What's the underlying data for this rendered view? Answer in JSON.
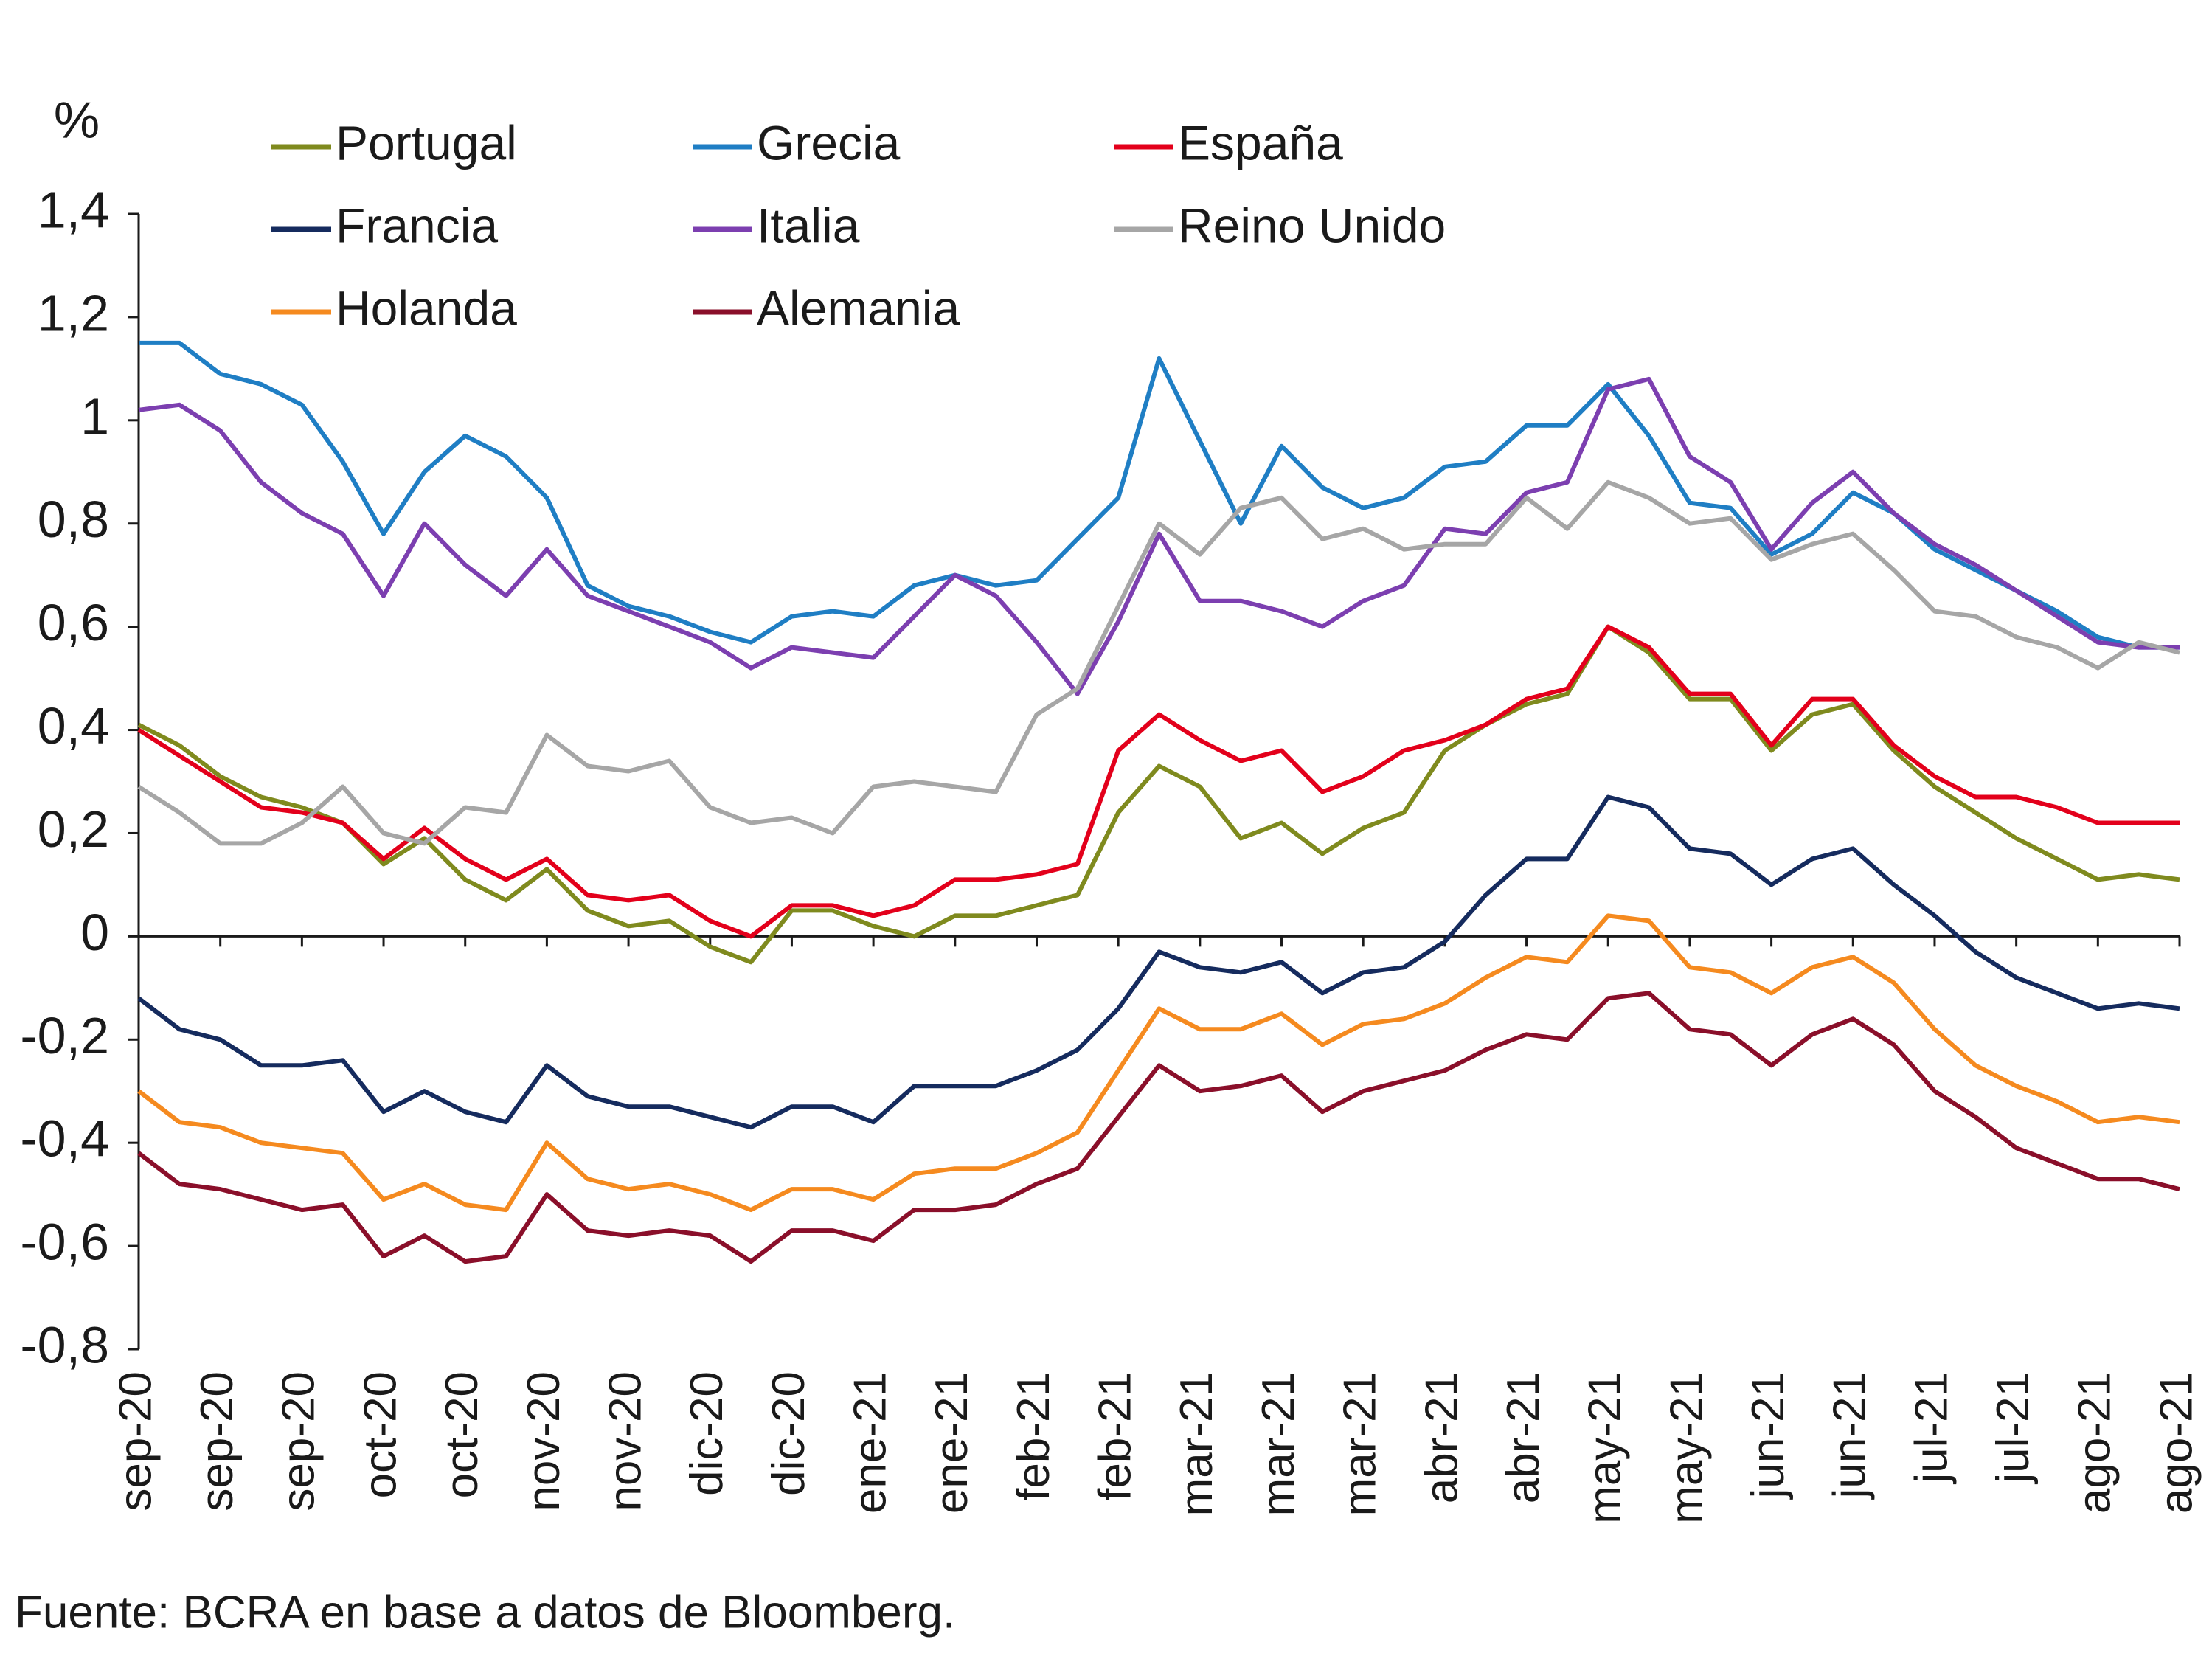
{
  "chart_data": {
    "type": "line",
    "ylabel": "%",
    "source": "Fuente: BCRA en base a datos de Bloomberg.",
    "legend": "top-left",
    "categories": [
      "sep-20",
      null,
      "sep-20",
      null,
      "sep-20",
      null,
      "oct-20",
      null,
      "oct-20",
      null,
      "nov-20",
      null,
      "nov-20",
      null,
      "dic-20",
      null,
      "dic-20",
      null,
      "ene-21",
      null,
      "ene-21",
      null,
      "feb-21",
      null,
      "feb-21",
      null,
      "mar-21",
      null,
      "mar-21",
      null,
      "mar-21",
      null,
      "abr-21",
      null,
      "abr-21",
      null,
      "may-21",
      null,
      "may-21",
      null,
      "jun-21",
      null,
      "jun-21",
      null,
      "jul-21",
      null,
      "jul-21",
      null,
      "ago-21",
      null,
      "ago-21"
    ],
    "ylim": [
      -0.8,
      1.4
    ],
    "yticks": [
      {
        "value": -0.8,
        "label": "-0,8"
      },
      {
        "value": -0.6,
        "label": "-0,6"
      },
      {
        "value": -0.4,
        "label": "-0,4"
      },
      {
        "value": -0.2,
        "label": "-0,2"
      },
      0,
      {
        "value": 0.2,
        "label": "0,2"
      },
      {
        "value": 0.4,
        "label": "0,4"
      },
      {
        "value": 0.6,
        "label": "0,6"
      },
      {
        "value": 0.8,
        "label": "0,8"
      },
      1,
      {
        "value": 1.2,
        "label": "1,2"
      },
      {
        "value": 1.4,
        "label": "1,4"
      }
    ],
    "series": [
      {
        "name": "Portugal",
        "color": "#7f8a1e",
        "values": [
          0.41,
          0.37,
          0.31,
          0.27,
          0.25,
          0.22,
          0.14,
          0.19,
          0.11,
          0.07,
          0.13,
          0.05,
          0.02,
          0.03,
          -0.02,
          -0.05,
          0.05,
          0.05,
          0.02,
          0.0,
          0.04,
          0.04,
          0.06,
          0.08,
          0.24,
          0.33,
          0.29,
          0.19,
          0.22,
          0.16,
          0.21,
          0.24,
          0.36,
          0.41,
          0.45,
          0.47,
          0.6,
          0.55,
          0.46,
          0.46,
          0.36,
          0.43,
          0.45,
          0.36,
          0.29,
          0.24,
          0.19,
          0.15,
          0.11,
          0.12,
          0.11
        ]
      },
      {
        "name": "Grecia",
        "color": "#1f7ec4",
        "values": [
          1.15,
          1.15,
          1.09,
          1.07,
          1.03,
          0.92,
          0.78,
          0.9,
          0.97,
          0.93,
          0.85,
          0.68,
          0.64,
          0.62,
          0.59,
          0.57,
          0.62,
          0.63,
          0.62,
          0.68,
          0.7,
          0.68,
          0.69,
          0.77,
          0.85,
          1.12,
          0.96,
          0.8,
          0.95,
          0.87,
          0.83,
          0.85,
          0.91,
          0.92,
          0.99,
          0.99,
          1.07,
          0.97,
          0.84,
          0.83,
          0.74,
          0.78,
          0.86,
          0.82,
          0.75,
          0.71,
          0.67,
          0.63,
          0.58,
          0.56,
          0.56
        ]
      },
      {
        "name": "España",
        "color": "#e3001b",
        "values": [
          0.4,
          0.35,
          0.3,
          0.25,
          0.24,
          0.22,
          0.15,
          0.21,
          0.15,
          0.11,
          0.15,
          0.08,
          0.07,
          0.08,
          0.03,
          0.0,
          0.06,
          0.06,
          0.04,
          0.06,
          0.11,
          0.11,
          0.12,
          0.14,
          0.36,
          0.43,
          0.38,
          0.34,
          0.36,
          0.28,
          0.31,
          0.36,
          0.38,
          0.41,
          0.46,
          0.48,
          0.6,
          0.56,
          0.47,
          0.47,
          0.37,
          0.46,
          0.46,
          0.37,
          0.31,
          0.27,
          0.27,
          0.25,
          0.22,
          0.22,
          0.22
        ]
      },
      {
        "name": "Francia",
        "color": "#152b5e",
        "values": [
          -0.12,
          -0.18,
          -0.2,
          -0.25,
          -0.25,
          -0.24,
          -0.34,
          -0.3,
          -0.34,
          -0.36,
          -0.25,
          -0.31,
          -0.33,
          -0.33,
          -0.35,
          -0.37,
          -0.33,
          -0.33,
          -0.36,
          -0.29,
          -0.29,
          -0.29,
          -0.26,
          -0.22,
          -0.14,
          -0.03,
          -0.06,
          -0.07,
          -0.05,
          -0.11,
          -0.07,
          -0.06,
          -0.01,
          0.08,
          0.15,
          0.15,
          0.27,
          0.25,
          0.17,
          0.16,
          0.1,
          0.15,
          0.17,
          0.1,
          0.04,
          -0.03,
          -0.08,
          -0.11,
          -0.14,
          -0.13,
          -0.14
        ]
      },
      {
        "name": "Italia",
        "color": "#7c3fb0",
        "values": [
          1.02,
          1.03,
          0.98,
          0.88,
          0.82,
          0.78,
          0.66,
          0.8,
          0.72,
          0.66,
          0.75,
          0.66,
          0.63,
          0.6,
          0.57,
          0.52,
          0.56,
          0.55,
          0.54,
          0.62,
          0.7,
          0.66,
          0.57,
          0.47,
          0.61,
          0.78,
          0.65,
          0.65,
          0.63,
          0.6,
          0.65,
          0.68,
          0.79,
          0.78,
          0.86,
          0.88,
          1.06,
          1.08,
          0.93,
          0.88,
          0.75,
          0.84,
          0.9,
          0.82,
          0.76,
          0.72,
          0.67,
          0.62,
          0.57,
          0.56,
          0.56
        ]
      },
      {
        "name": "Reino Unido",
        "color": "#a6a6a6",
        "values": [
          0.29,
          0.24,
          0.18,
          0.18,
          0.22,
          0.29,
          0.2,
          0.18,
          0.25,
          0.24,
          0.39,
          0.33,
          0.32,
          0.34,
          0.25,
          0.22,
          0.23,
          0.2,
          0.29,
          0.3,
          0.29,
          0.28,
          0.43,
          0.48,
          0.64,
          0.8,
          0.74,
          0.83,
          0.85,
          0.77,
          0.79,
          0.75,
          0.76,
          0.76,
          0.85,
          0.79,
          0.88,
          0.85,
          0.8,
          0.81,
          0.73,
          0.76,
          0.78,
          0.71,
          0.63,
          0.62,
          0.58,
          0.56,
          0.52,
          0.57,
          0.55
        ]
      },
      {
        "name": "Holanda",
        "color": "#f58a1f",
        "values": [
          -0.3,
          -0.36,
          -0.37,
          -0.4,
          -0.41,
          -0.42,
          -0.51,
          -0.48,
          -0.52,
          -0.53,
          -0.4,
          -0.47,
          -0.49,
          -0.48,
          -0.5,
          -0.53,
          -0.49,
          -0.49,
          -0.51,
          -0.46,
          -0.45,
          -0.45,
          -0.42,
          -0.38,
          -0.26,
          -0.14,
          -0.18,
          -0.18,
          -0.15,
          -0.21,
          -0.17,
          -0.16,
          -0.13,
          -0.08,
          -0.04,
          -0.05,
          0.04,
          0.03,
          -0.06,
          -0.07,
          -0.11,
          -0.06,
          -0.04,
          -0.09,
          -0.18,
          -0.25,
          -0.29,
          -0.32,
          -0.36,
          -0.35,
          -0.36
        ]
      },
      {
        "name": "Alemania",
        "color": "#8a0f2a",
        "values": [
          -0.42,
          -0.48,
          -0.49,
          -0.51,
          -0.53,
          -0.52,
          -0.62,
          -0.58,
          -0.63,
          -0.62,
          -0.5,
          -0.57,
          -0.58,
          -0.57,
          -0.58,
          -0.63,
          -0.57,
          -0.57,
          -0.59,
          -0.53,
          -0.53,
          -0.52,
          -0.48,
          -0.45,
          -0.35,
          -0.25,
          -0.3,
          -0.29,
          -0.27,
          -0.34,
          -0.3,
          -0.28,
          -0.26,
          -0.22,
          -0.19,
          -0.2,
          -0.12,
          -0.11,
          -0.18,
          -0.19,
          -0.25,
          -0.19,
          -0.16,
          -0.21,
          -0.3,
          -0.35,
          -0.41,
          -0.44,
          -0.47,
          -0.47,
          -0.49
        ]
      }
    ]
  }
}
